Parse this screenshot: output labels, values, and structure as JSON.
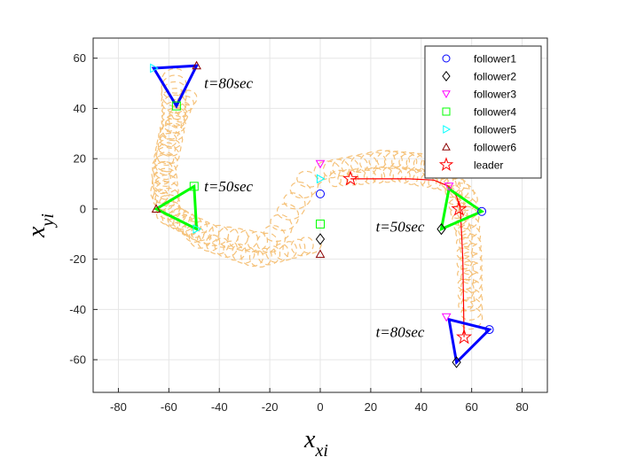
{
  "chart_data": {
    "type": "scatter",
    "xlabel": {
      "base": "x",
      "sub": "xi"
    },
    "ylabel": {
      "base": "x",
      "sub": "yi"
    },
    "xlim": [
      -90,
      90
    ],
    "ylim": [
      -73,
      68
    ],
    "xticks": [
      -80,
      -60,
      -40,
      -20,
      0,
      20,
      40,
      60,
      80
    ],
    "yticks": [
      -60,
      -40,
      -20,
      0,
      20,
      40,
      60
    ],
    "grid": true,
    "legend_position": "top-right",
    "series": [
      {
        "name": "follower1",
        "marker": "circle",
        "color": "#0000ff",
        "points": [
          [
            0,
            6
          ],
          [
            64,
            -1
          ],
          [
            67,
            -48
          ]
        ]
      },
      {
        "name": "follower2",
        "marker": "diamond",
        "color": "#000000",
        "points": [
          [
            0,
            -12
          ],
          [
            48,
            -8
          ],
          [
            54,
            -61
          ]
        ]
      },
      {
        "name": "follower3",
        "marker": "triangle-down",
        "color": "#ff00ff",
        "points": [
          [
            0,
            18
          ],
          [
            51,
            9
          ],
          [
            50,
            -43
          ]
        ]
      },
      {
        "name": "follower4",
        "marker": "square",
        "color": "#00ff00",
        "points": [
          [
            0,
            -6
          ],
          [
            -50,
            9
          ],
          [
            -57,
            41
          ]
        ]
      },
      {
        "name": "follower5",
        "marker": "triangle-right",
        "color": "#00ffff",
        "points": [
          [
            0,
            12
          ],
          [
            -49,
            -8
          ],
          [
            -66,
            56
          ]
        ]
      },
      {
        "name": "follower6",
        "marker": "triangle-up",
        "color": "#8b0000",
        "points": [
          [
            0,
            -18
          ],
          [
            -65,
            0
          ],
          [
            -49,
            57
          ]
        ]
      },
      {
        "name": "leader",
        "marker": "star",
        "color": "#ff0000",
        "points": [
          [
            12,
            12
          ],
          [
            55,
            0
          ],
          [
            57,
            -51
          ]
        ]
      }
    ],
    "leader_path": [
      [
        12,
        12
      ],
      [
        35,
        12
      ],
      [
        45,
        11.5
      ],
      [
        51,
        9
      ],
      [
        54,
        5
      ],
      [
        55.5,
        0
      ],
      [
        56.5,
        -20
      ],
      [
        57,
        -51
      ]
    ],
    "formations": [
      {
        "color": "#00ff00",
        "points": [
          [
            -50,
            9
          ],
          [
            -65,
            0
          ],
          [
            -49,
            -8
          ]
        ]
      },
      {
        "color": "#00ff00",
        "points": [
          [
            51,
            8
          ],
          [
            64,
            -1
          ],
          [
            48,
            -8
          ]
        ]
      },
      {
        "color": "#0000ff",
        "points": [
          [
            -66,
            56
          ],
          [
            -49,
            57
          ],
          [
            -57,
            41
          ]
        ]
      },
      {
        "color": "#0000ff",
        "points": [
          [
            51,
            -44
          ],
          [
            67,
            -48
          ],
          [
            54,
            -61
          ]
        ]
      }
    ],
    "annotations": [
      {
        "text": "t=80sec",
        "x": -46,
        "y": 48
      },
      {
        "text": "t=50sec",
        "x": -46,
        "y": 7
      },
      {
        "text": "t=50sec",
        "x": 22,
        "y": -9
      },
      {
        "text": "t=80sec",
        "x": 22,
        "y": -51
      }
    ],
    "dashed_track_color": "#f5c27a"
  }
}
